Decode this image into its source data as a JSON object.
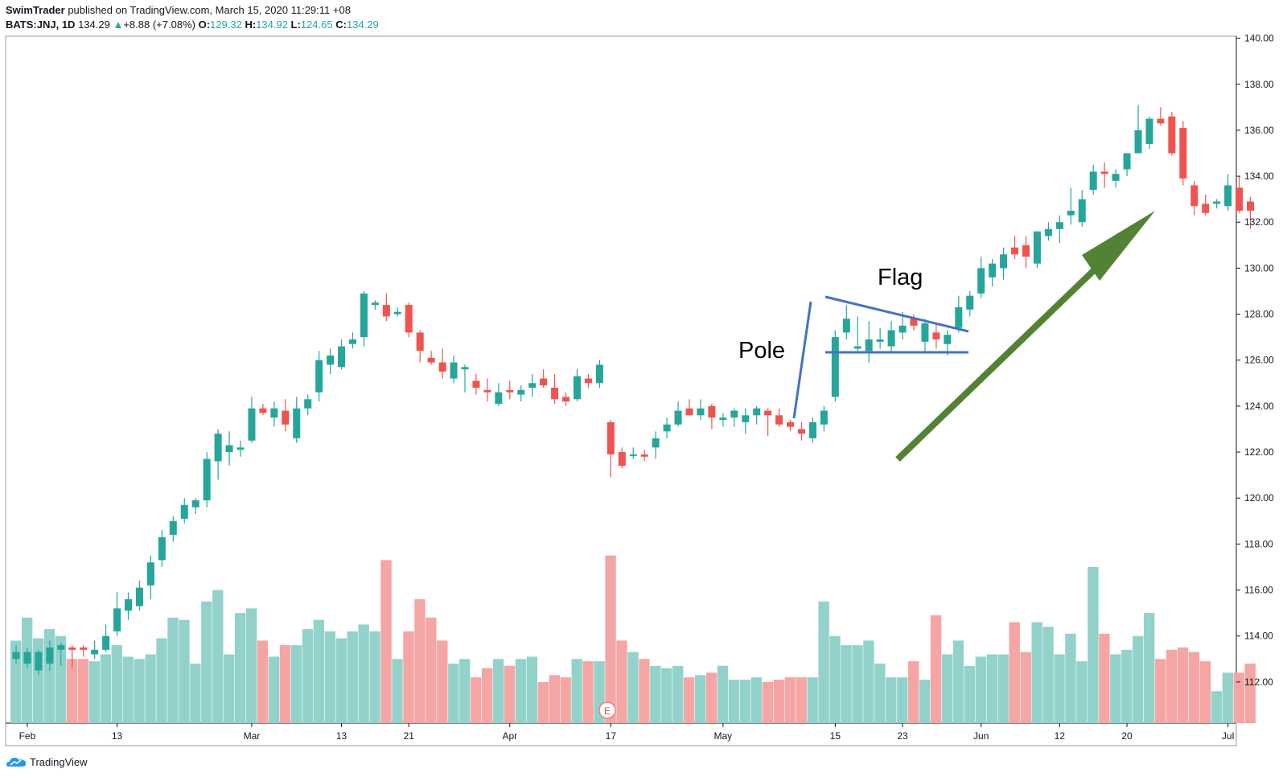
{
  "header": {
    "author": "SwimTrader",
    "published_text": " published on TradingView.com, March 15, 2020 11:29:11 +08",
    "symbol_line": "BATS:JNJ, 1D",
    "price": "134.29",
    "change_arrow": "▲",
    "change": "+8.88 (+7.08%)",
    "open_label": "O:",
    "open": "129.32",
    "high_label": "H:",
    "high": "134.92",
    "low_label": "L:",
    "low": "124.65",
    "close_label": "C:",
    "close": "134.29"
  },
  "footer": {
    "brand": "TradingView",
    "logo_icon": "tradingview-logo-icon"
  },
  "colors": {
    "up": "#26a69a",
    "down": "#ef5350",
    "vol_up": "#92d2cb",
    "vol_down": "#f5a5a3",
    "trendline": "#4472c4",
    "arrow": "#548235"
  },
  "chart_data": {
    "type": "candlestick",
    "title": "",
    "xlabel": "",
    "ylabel": "",
    "ylim": [
      110,
      140
    ],
    "y_ticks": [
      "112.00",
      "114.00",
      "116.00",
      "118.00",
      "120.00",
      "122.00",
      "124.00",
      "126.00",
      "128.00",
      "130.00",
      "132.00",
      "134.00",
      "136.00",
      "138.00",
      "140.00"
    ],
    "x_ticks": [
      "Feb",
      "13",
      "Mar",
      "13",
      "21",
      "Apr",
      "17",
      "May",
      "15",
      "23",
      "Jun",
      "12",
      "20",
      "Jul"
    ],
    "annotations": {
      "pole": "Pole",
      "flag": "Flag",
      "earnings_marker": "E"
    },
    "candles": [
      {
        "o": 113.0,
        "h": 113.6,
        "l": 112.8,
        "c": 113.3,
        "v": 113.8
      },
      {
        "o": 112.8,
        "h": 113.5,
        "l": 112.6,
        "c": 113.3,
        "v": 114.8
      },
      {
        "o": 112.5,
        "h": 113.4,
        "l": 112.3,
        "c": 113.3,
        "v": 113.9
      },
      {
        "o": 112.8,
        "h": 113.8,
        "l": 112.5,
        "c": 113.5,
        "v": 114.3
      },
      {
        "o": 113.4,
        "h": 113.7,
        "l": 112.7,
        "c": 113.6,
        "v": 114.0
      },
      {
        "o": 113.5,
        "h": 113.6,
        "l": 112.6,
        "c": 113.4,
        "v": 113.0
      },
      {
        "o": 113.5,
        "h": 113.6,
        "l": 113.1,
        "c": 113.4,
        "v": 113.0
      },
      {
        "o": 113.2,
        "h": 113.8,
        "l": 113.0,
        "c": 113.4,
        "v": 112.9
      },
      {
        "o": 113.4,
        "h": 114.5,
        "l": 113.3,
        "c": 114.0,
        "v": 113.2
      },
      {
        "o": 114.2,
        "h": 115.9,
        "l": 114.0,
        "c": 115.2,
        "v": 113.6
      },
      {
        "o": 115.1,
        "h": 115.9,
        "l": 114.7,
        "c": 115.6,
        "v": 113.1
      },
      {
        "o": 115.3,
        "h": 116.4,
        "l": 115.1,
        "c": 116.1,
        "v": 113.0
      },
      {
        "o": 116.2,
        "h": 117.5,
        "l": 115.6,
        "c": 117.2,
        "v": 113.2
      },
      {
        "o": 117.3,
        "h": 118.6,
        "l": 117.0,
        "c": 118.3,
        "v": 113.9
      },
      {
        "o": 118.4,
        "h": 119.2,
        "l": 118.1,
        "c": 119.0,
        "v": 114.8
      },
      {
        "o": 119.1,
        "h": 120.0,
        "l": 118.9,
        "c": 119.7,
        "v": 114.7
      },
      {
        "o": 119.6,
        "h": 120.0,
        "l": 119.3,
        "c": 119.9,
        "v": 112.8
      },
      {
        "o": 119.9,
        "h": 122.0,
        "l": 119.6,
        "c": 121.7,
        "v": 115.5
      },
      {
        "o": 121.6,
        "h": 123.0,
        "l": 120.8,
        "c": 122.8,
        "v": 116.0
      },
      {
        "o": 122.0,
        "h": 122.9,
        "l": 121.4,
        "c": 122.3,
        "v": 113.2
      },
      {
        "o": 122.1,
        "h": 122.5,
        "l": 121.8,
        "c": 122.2,
        "v": 115.0
      },
      {
        "o": 122.5,
        "h": 124.4,
        "l": 122.4,
        "c": 123.9,
        "v": 115.2
      },
      {
        "o": 123.9,
        "h": 124.1,
        "l": 123.6,
        "c": 123.7,
        "v": 113.8
      },
      {
        "o": 123.5,
        "h": 124.2,
        "l": 123.1,
        "c": 123.9,
        "v": 113.1
      },
      {
        "o": 123.8,
        "h": 124.3,
        "l": 122.9,
        "c": 123.2,
        "v": 113.6
      },
      {
        "o": 122.6,
        "h": 124.4,
        "l": 122.4,
        "c": 123.9,
        "v": 113.6
      },
      {
        "o": 123.9,
        "h": 124.5,
        "l": 123.6,
        "c": 124.3,
        "v": 114.3
      },
      {
        "o": 124.6,
        "h": 126.4,
        "l": 124.2,
        "c": 126.0,
        "v": 114.7
      },
      {
        "o": 125.8,
        "h": 126.5,
        "l": 125.4,
        "c": 126.2,
        "v": 114.2
      },
      {
        "o": 125.7,
        "h": 126.9,
        "l": 125.6,
        "c": 126.6,
        "v": 113.9
      },
      {
        "o": 126.7,
        "h": 127.2,
        "l": 126.5,
        "c": 126.9,
        "v": 114.2
      },
      {
        "o": 127.0,
        "h": 129.0,
        "l": 126.6,
        "c": 128.9,
        "v": 114.5
      },
      {
        "o": 128.4,
        "h": 128.6,
        "l": 128.2,
        "c": 128.5,
        "v": 114.2
      },
      {
        "o": 128.4,
        "h": 128.9,
        "l": 127.7,
        "c": 127.9,
        "v": 117.3
      },
      {
        "o": 128.0,
        "h": 128.3,
        "l": 127.9,
        "c": 128.1,
        "v": 113.0
      },
      {
        "o": 128.4,
        "h": 128.5,
        "l": 127.0,
        "c": 127.2,
        "v": 114.2
      },
      {
        "o": 127.2,
        "h": 127.3,
        "l": 125.9,
        "c": 126.4,
        "v": 115.6
      },
      {
        "o": 126.1,
        "h": 126.4,
        "l": 125.8,
        "c": 125.9,
        "v": 114.8
      },
      {
        "o": 125.9,
        "h": 126.5,
        "l": 125.2,
        "c": 125.5,
        "v": 113.8
      },
      {
        "o": 125.2,
        "h": 126.2,
        "l": 125.0,
        "c": 125.9,
        "v": 112.8
      },
      {
        "o": 125.6,
        "h": 125.8,
        "l": 124.6,
        "c": 125.7,
        "v": 113.0
      },
      {
        "o": 125.1,
        "h": 125.4,
        "l": 124.5,
        "c": 124.8,
        "v": 112.2
      },
      {
        "o": 124.7,
        "h": 125.2,
        "l": 124.2,
        "c": 124.6,
        "v": 112.6
      },
      {
        "o": 124.1,
        "h": 125.0,
        "l": 124.0,
        "c": 124.6,
        "v": 113.0
      },
      {
        "o": 124.7,
        "h": 125.1,
        "l": 124.3,
        "c": 124.6,
        "v": 112.7
      },
      {
        "o": 124.5,
        "h": 124.9,
        "l": 124.2,
        "c": 124.7,
        "v": 113.0
      },
      {
        "o": 124.8,
        "h": 125.4,
        "l": 124.4,
        "c": 125.0,
        "v": 113.1
      },
      {
        "o": 125.2,
        "h": 125.6,
        "l": 124.8,
        "c": 124.9,
        "v": 112.0
      },
      {
        "o": 124.8,
        "h": 125.4,
        "l": 124.1,
        "c": 124.3,
        "v": 112.3
      },
      {
        "o": 124.4,
        "h": 124.6,
        "l": 124.0,
        "c": 124.2,
        "v": 112.2
      },
      {
        "o": 124.3,
        "h": 125.6,
        "l": 124.2,
        "c": 125.3,
        "v": 113.0
      },
      {
        "o": 125.2,
        "h": 125.4,
        "l": 124.8,
        "c": 125.0,
        "v": 112.9
      },
      {
        "o": 125.0,
        "h": 126.0,
        "l": 124.8,
        "c": 125.8,
        "v": 112.9
      },
      {
        "o": 123.3,
        "h": 123.4,
        "l": 120.9,
        "c": 121.9,
        "v": 117.5
      },
      {
        "o": 122.0,
        "h": 122.2,
        "l": 121.3,
        "c": 121.4,
        "v": 113.8
      },
      {
        "o": 121.9,
        "h": 122.2,
        "l": 121.7,
        "c": 121.9,
        "v": 113.3
      },
      {
        "o": 121.9,
        "h": 122.1,
        "l": 121.6,
        "c": 121.8,
        "v": 113.0
      },
      {
        "o": 122.2,
        "h": 122.9,
        "l": 121.7,
        "c": 122.6,
        "v": 112.7
      },
      {
        "o": 122.9,
        "h": 123.5,
        "l": 122.6,
        "c": 123.2,
        "v": 112.6
      },
      {
        "o": 123.2,
        "h": 124.2,
        "l": 123.1,
        "c": 123.8,
        "v": 112.7
      },
      {
        "o": 123.9,
        "h": 124.3,
        "l": 123.6,
        "c": 123.6,
        "v": 112.2
      },
      {
        "o": 123.6,
        "h": 124.3,
        "l": 123.4,
        "c": 123.9,
        "v": 112.3
      },
      {
        "o": 124.0,
        "h": 124.1,
        "l": 123.0,
        "c": 123.5,
        "v": 112.4
      },
      {
        "o": 123.4,
        "h": 123.7,
        "l": 123.1,
        "c": 123.5,
        "v": 112.7
      },
      {
        "o": 123.5,
        "h": 123.9,
        "l": 123.1,
        "c": 123.8,
        "v": 112.1
      },
      {
        "o": 123.3,
        "h": 123.9,
        "l": 122.8,
        "c": 123.6,
        "v": 112.1
      },
      {
        "o": 123.6,
        "h": 124.0,
        "l": 123.2,
        "c": 123.9,
        "v": 112.2
      },
      {
        "o": 123.8,
        "h": 123.9,
        "l": 122.7,
        "c": 123.6,
        "v": 112.0
      },
      {
        "o": 123.6,
        "h": 123.9,
        "l": 123.1,
        "c": 123.2,
        "v": 112.1
      },
      {
        "o": 123.3,
        "h": 123.4,
        "l": 122.9,
        "c": 123.1,
        "v": 112.2
      },
      {
        "o": 123.0,
        "h": 123.3,
        "l": 122.5,
        "c": 122.8,
        "v": 112.2
      },
      {
        "o": 122.6,
        "h": 123.5,
        "l": 122.4,
        "c": 123.3,
        "v": 112.2
      },
      {
        "o": 123.2,
        "h": 124.0,
        "l": 122.9,
        "c": 123.8,
        "v": 115.5
      },
      {
        "o": 124.4,
        "h": 127.3,
        "l": 124.2,
        "c": 127.0,
        "v": 114.0
      },
      {
        "o": 127.2,
        "h": 128.4,
        "l": 126.9,
        "c": 127.8,
        "v": 113.6
      },
      {
        "o": 126.5,
        "h": 127.9,
        "l": 126.4,
        "c": 126.6,
        "v": 113.6
      },
      {
        "o": 126.4,
        "h": 127.7,
        "l": 125.9,
        "c": 126.9,
        "v": 113.8
      },
      {
        "o": 126.8,
        "h": 127.4,
        "l": 126.5,
        "c": 126.9,
        "v": 112.8
      },
      {
        "o": 126.6,
        "h": 127.7,
        "l": 126.3,
        "c": 127.3,
        "v": 112.2
      },
      {
        "o": 127.2,
        "h": 128.1,
        "l": 126.9,
        "c": 127.5,
        "v": 112.2
      },
      {
        "o": 127.8,
        "h": 128.0,
        "l": 127.3,
        "c": 127.5,
        "v": 112.9
      },
      {
        "o": 126.8,
        "h": 127.8,
        "l": 126.3,
        "c": 127.6,
        "v": 112.1
      },
      {
        "o": 127.2,
        "h": 127.6,
        "l": 126.5,
        "c": 126.9,
        "v": 114.9
      },
      {
        "o": 126.7,
        "h": 127.3,
        "l": 126.2,
        "c": 127.1,
        "v": 113.2
      },
      {
        "o": 127.4,
        "h": 128.8,
        "l": 127.2,
        "c": 128.3,
        "v": 113.8
      },
      {
        "o": 128.2,
        "h": 129.0,
        "l": 127.9,
        "c": 128.8,
        "v": 112.7
      },
      {
        "o": 128.9,
        "h": 130.5,
        "l": 128.7,
        "c": 130.0,
        "v": 113.1
      },
      {
        "o": 129.6,
        "h": 130.4,
        "l": 129.2,
        "c": 130.2,
        "v": 113.2
      },
      {
        "o": 130.0,
        "h": 130.9,
        "l": 129.5,
        "c": 130.6,
        "v": 113.2
      },
      {
        "o": 130.9,
        "h": 131.4,
        "l": 130.4,
        "c": 130.6,
        "v": 114.6
      },
      {
        "o": 131.0,
        "h": 131.4,
        "l": 130.0,
        "c": 130.5,
        "v": 113.3
      },
      {
        "o": 130.2,
        "h": 131.6,
        "l": 130.0,
        "c": 131.6,
        "v": 114.6
      },
      {
        "o": 131.4,
        "h": 132.0,
        "l": 131.2,
        "c": 131.7,
        "v": 114.4
      },
      {
        "o": 131.7,
        "h": 132.3,
        "l": 131.1,
        "c": 132.0,
        "v": 113.2
      },
      {
        "o": 132.3,
        "h": 133.5,
        "l": 131.9,
        "c": 132.5,
        "v": 114.1
      },
      {
        "o": 132.0,
        "h": 133.4,
        "l": 131.8,
        "c": 133.0,
        "v": 112.9
      },
      {
        "o": 133.4,
        "h": 134.5,
        "l": 133.2,
        "c": 134.2,
        "v": 117.0
      },
      {
        "o": 134.2,
        "h": 134.6,
        "l": 133.5,
        "c": 134.1,
        "v": 114.1
      },
      {
        "o": 133.8,
        "h": 134.3,
        "l": 133.5,
        "c": 134.1,
        "v": 113.2
      },
      {
        "o": 134.3,
        "h": 135.0,
        "l": 134.0,
        "c": 135.0,
        "v": 113.4
      },
      {
        "o": 135.0,
        "h": 137.1,
        "l": 135.0,
        "c": 136.0,
        "v": 114.0
      },
      {
        "o": 135.4,
        "h": 136.6,
        "l": 135.2,
        "c": 136.5,
        "v": 115.0
      },
      {
        "o": 136.5,
        "h": 137.0,
        "l": 136.2,
        "c": 136.3,
        "v": 113.0
      },
      {
        "o": 136.6,
        "h": 136.8,
        "l": 134.9,
        "c": 135.0,
        "v": 113.4
      },
      {
        "o": 136.1,
        "h": 136.4,
        "l": 133.6,
        "c": 133.9,
        "v": 113.5
      },
      {
        "o": 133.6,
        "h": 133.8,
        "l": 132.3,
        "c": 132.7,
        "v": 113.3
      },
      {
        "o": 132.8,
        "h": 133.2,
        "l": 132.3,
        "c": 132.4,
        "v": 112.9
      },
      {
        "o": 132.8,
        "h": 133.0,
        "l": 132.6,
        "c": 132.9,
        "v": 111.6
      },
      {
        "o": 132.7,
        "h": 134.1,
        "l": 132.5,
        "c": 133.6,
        "v": 112.4
      },
      {
        "o": 133.5,
        "h": 134.0,
        "l": 132.4,
        "c": 132.5,
        "v": 112.4
      },
      {
        "o": 132.9,
        "h": 133.1,
        "l": 131.7,
        "c": 132.5,
        "v": 112.8
      }
    ]
  }
}
